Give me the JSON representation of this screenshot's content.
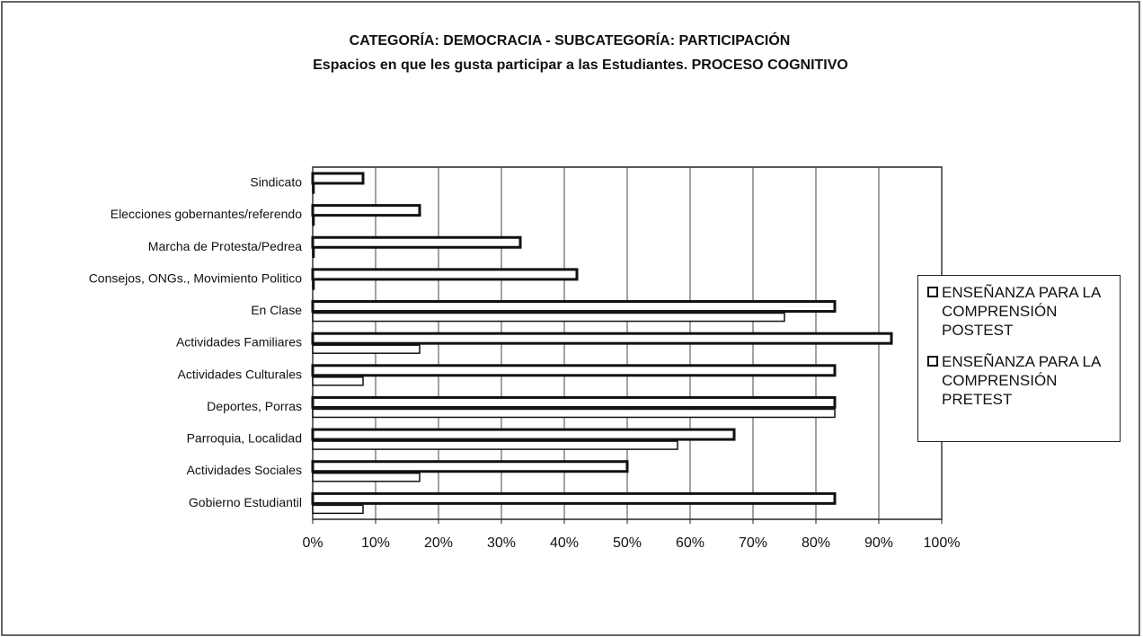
{
  "chart_data": {
    "type": "barh",
    "title": "CATEGORÍA: DEMOCRACIA - SUBCATEGORÍA: PARTICIPACIÓN",
    "subtitle": "Espacios en que les gusta participar a las Estudiantes. PROCESO COGNITIVO",
    "categories": [
      "Sindicato",
      "Elecciones gobernantes/referendo",
      "Marcha de Protesta/Pedrea",
      "Consejos, ONGs., Movimiento Politico",
      "En Clase",
      "Actividades Familiares",
      "Actividades Culturales",
      "Deportes, Porras",
      "Parroquia, Localidad",
      "Actividades Sociales",
      "Gobierno Estudiantil"
    ],
    "series": [
      {
        "name": "ENSEÑANZA PARA LA COMPRENSIÓN POSTEST",
        "color": "#ffffff",
        "values": [
          8,
          17,
          33,
          42,
          83,
          92,
          83,
          83,
          67,
          50,
          83
        ]
      },
      {
        "name": "ENSEÑANZA PARA LA COMPRENSIÓN PRETEST",
        "color": "#ffffff",
        "values": [
          0,
          0,
          0,
          0,
          75,
          17,
          8,
          83,
          58,
          17,
          8
        ]
      }
    ],
    "xlim": [
      0,
      100
    ],
    "xticks": [
      {
        "value": 0,
        "label": "0%"
      },
      {
        "value": 10,
        "label": "10%"
      },
      {
        "value": 20,
        "label": "20%"
      },
      {
        "value": 30,
        "label": "30%"
      },
      {
        "value": 40,
        "label": "40%"
      },
      {
        "value": 50,
        "label": "50%"
      },
      {
        "value": 60,
        "label": "60%"
      },
      {
        "value": 70,
        "label": "70%"
      },
      {
        "value": 80,
        "label": "80%"
      },
      {
        "value": 90,
        "label": "90%"
      },
      {
        "value": 100,
        "label": "100%"
      }
    ],
    "grid": true,
    "legend": "right"
  }
}
